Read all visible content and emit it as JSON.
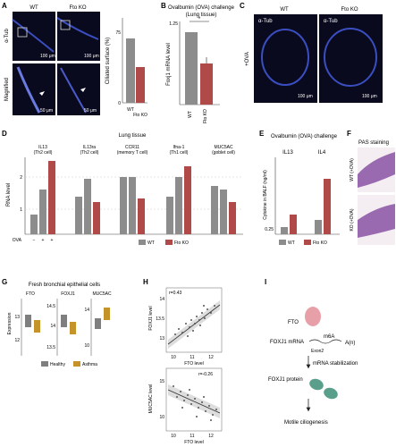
{
  "colors": {
    "wt": "#8c8c8c",
    "ko": "#b04a48",
    "healthy": "#7f7f7f",
    "asthma": "#c4942a",
    "fto_shape": "#e8a0a8",
    "foxj1_protein": "#5a9e8c",
    "mic_bg": "#0a0a1e",
    "mic_signal": "#3a4ec0",
    "pas_tissue": "#9a6ab0"
  },
  "panelA": {
    "letter": "A",
    "col_wt": "WT",
    "col_ko": "Fto KO",
    "row_top": "α-Tub",
    "row_bottom": "Magnified",
    "scale_top": "100 μm",
    "scale_bottom": "50 μm",
    "ylabel": "Ciliated surface (%)",
    "xlabels": [
      "WT",
      "Fto KO"
    ],
    "tick0": "0",
    "tick75": "75"
  },
  "panelB": {
    "letter": "B",
    "title": "Ovalbumin (OVA) challenge",
    "subtitle": "(Lung tissue)",
    "ylabel": "Foxj1 mRNA level",
    "xlabels": [
      "WT",
      "Fto KO"
    ],
    "tick": "1.25",
    "sig": "*"
  },
  "panelC": {
    "letter": "C",
    "col_wt": "WT",
    "col_ko": "Fto KO",
    "row": "+OVA",
    "label": "α-Tub",
    "scale": "100 μm"
  },
  "panelD": {
    "letter": "D",
    "title": "Lung tissue",
    "ylabel": "RNA level",
    "groups": [
      "IL13",
      "IL13ra",
      "CCR11",
      "Ifna-1",
      "MUC5AC"
    ],
    "groups_sub": [
      "(Th2 cell)",
      "(Th2 cell)",
      "(memory T cell)",
      "(Th1 cell)",
      "(goblet cell)"
    ],
    "ova_label": "OVA",
    "ova_signs": [
      "−",
      "+",
      "+"
    ],
    "legend_wt": "WT",
    "legend_ko": "Fto KO",
    "tick1": "1",
    "tick2": "2"
  },
  "panelE": {
    "letter": "E",
    "title": "Ovalbumin (OVA) challenge",
    "ylabel": "Cytokine in BALF (ng/ml)",
    "groups": [
      "IL13",
      "IL4"
    ],
    "tick": "0.25",
    "legend_wt": "WT",
    "legend_ko": "Fto KO"
  },
  "panelF": {
    "letter": "F",
    "title": "PAS staining",
    "row1": "WT (+OVA)",
    "row2": "KO (+OVA)"
  },
  "panelG": {
    "letter": "G",
    "title": "Fresh bronchial epithelial cells",
    "ylabel": "Expression",
    "genes": [
      "FTO",
      "FOXJ1",
      "MUC5AC"
    ],
    "ticks_fto": [
      "12",
      "13"
    ],
    "ticks_foxj1": [
      "13.5",
      "14",
      "14.5"
    ],
    "ticks_muc": [
      "10",
      "14"
    ],
    "legend_healthy": "Healthy",
    "legend_asthma": "Asthma"
  },
  "panelH": {
    "letter": "H",
    "top_ylabel": "FOXJ1 level",
    "top_xlabel": "FTO level",
    "top_r": "r=0.43",
    "top_yticks": [
      "14",
      "13.5",
      "13"
    ],
    "top_xticks": [
      "10",
      "11",
      "12"
    ],
    "bottom_ylabel": "MUC5AC level",
    "bottom_xlabel": "FTO level",
    "bottom_r": "r=-0.26",
    "bottom_yticks": [
      "15",
      "10"
    ],
    "bottom_xticks": [
      "10",
      "11",
      "12"
    ]
  },
  "panelI": {
    "letter": "I",
    "fto": "FTO",
    "mrna": "FOXJ1 mRNA",
    "m6a": "m6A",
    "tail": "A(n)",
    "exon": "Exon2",
    "stab": "mRNA stabilization",
    "protein": "FOXJ1 protein",
    "outcome": "Motile ciliogenesis"
  }
}
